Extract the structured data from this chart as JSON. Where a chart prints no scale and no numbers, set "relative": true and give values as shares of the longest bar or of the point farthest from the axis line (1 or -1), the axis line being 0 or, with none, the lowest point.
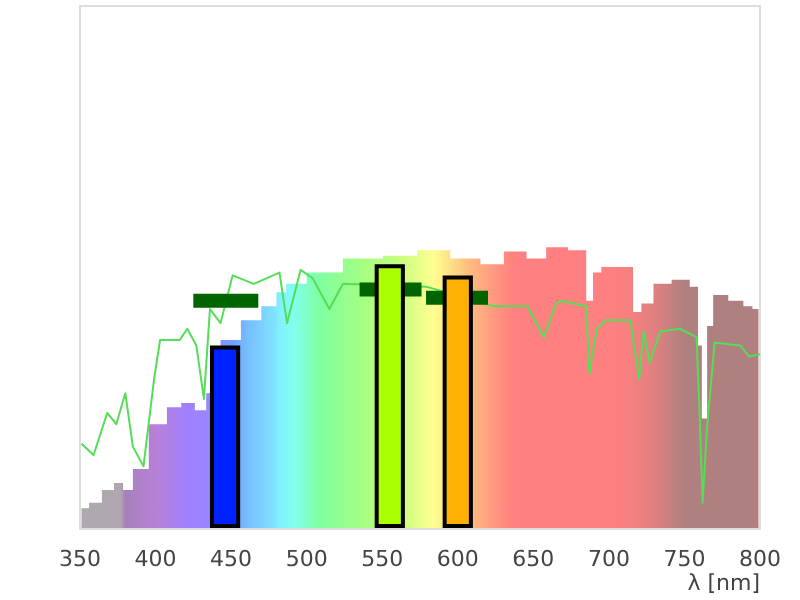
{
  "chart_data": {
    "type": "area",
    "relative": true,
    "xlabel": "λ [nm]",
    "xlim": [
      350,
      800
    ],
    "xticks": [
      350,
      400,
      450,
      500,
      550,
      600,
      650,
      700,
      750,
      800
    ],
    "grid": false,
    "series": [
      {
        "x": [
          351,
          361,
          368,
          377,
          380,
          390,
          401,
          414,
          420,
          432,
          435,
          451,
          462,
          478,
          482,
          491,
          509,
          539,
          562,
          584,
          606,
          624,
          637,
          654,
          663,
          683,
          687,
          692,
          698,
          714,
          718,
          725,
          734,
          749,
          758,
          760,
          763,
          767,
          771,
          787,
          791,
          799
        ],
        "values": [
          0.07,
          0.09,
          0.135,
          0.16,
          0.135,
          0.21,
          0.37,
          0.43,
          0.445,
          0.42,
          0.48,
          0.67,
          0.74,
          0.79,
          0.84,
          0.87,
          0.91,
          0.96,
          0.97,
          0.99,
          0.96,
          0.94,
          0.985,
          0.96,
          1.0,
          0.99,
          0.81,
          0.91,
          0.93,
          0.93,
          0.77,
          0.8,
          0.87,
          0.885,
          0.86,
          0.65,
          0.39,
          0.72,
          0.83,
          0.81,
          0.79,
          0.78
        ],
        "colors": [
          "#b0a8b0",
          "#b0a8b0",
          "#b0a8b0",
          "#b0a8b0",
          "#a880b8",
          "#b080c8",
          "#b880d8",
          "#a880f0",
          "#a080ff",
          "#9c84ff",
          "#9888ff",
          "#70a0ff",
          "#78c0ff",
          "#80e0ff",
          "#80f0ff",
          "#80fff0",
          "#80ffa0",
          "#a8ff80",
          "#c8ff80",
          "#ffff90",
          "#ffc080",
          "#ff9880",
          "#ff8080",
          "#ff8080",
          "#ff8080",
          "#ff8080",
          "#ff8080",
          "#ff8080",
          "#ff8080",
          "#f88080",
          "#f08080",
          "#e88080",
          "#d88080",
          "#b08080",
          "#b08080",
          "#b08080",
          "#b08080",
          "#b08080",
          "#b08080",
          "#b08080",
          "#b08080",
          "#b08080"
        ]
      },
      {
        "type": "line",
        "color": "#55dd55",
        "x": [
          351,
          359,
          368,
          374,
          380,
          385,
          392,
          399,
          403,
          416,
          421,
          427,
          432,
          436,
          443,
          451,
          465,
          482,
          487,
          496,
          504,
          515,
          524,
          579,
          624,
          646,
          657,
          665,
          668,
          685,
          687,
          692,
          698,
          714,
          720,
          723,
          727,
          734,
          747,
          758,
          760,
          762,
          765,
          770,
          787,
          793,
          800
        ],
        "values": [
          0.3,
          0.26,
          0.41,
          0.37,
          0.48,
          0.29,
          0.22,
          0.53,
          0.67,
          0.67,
          0.71,
          0.65,
          0.46,
          0.78,
          0.73,
          0.9,
          0.87,
          0.91,
          0.73,
          0.92,
          0.89,
          0.78,
          0.87,
          0.86,
          0.79,
          0.79,
          0.68,
          0.8,
          0.81,
          0.79,
          0.55,
          0.71,
          0.74,
          0.74,
          0.53,
          0.7,
          0.59,
          0.7,
          0.71,
          0.68,
          0.41,
          0.09,
          0.36,
          0.66,
          0.65,
          0.61,
          0.62
        ]
      },
      {
        "type": "line",
        "color": "#006400",
        "x": [
          425,
          468
        ],
        "values": [
          0.81,
          0.81
        ]
      },
      {
        "type": "line",
        "color": "#006400",
        "x": [
          535,
          576
        ],
        "values": [
          0.85,
          0.85
        ]
      },
      {
        "type": "line",
        "color": "#006400",
        "x": [
          579,
          620
        ],
        "values": [
          0.82,
          0.82
        ]
      },
      {
        "type": "bar",
        "x": [
          446,
          555,
          600
        ],
        "values": [
          0.65,
          0.94,
          0.9
        ],
        "colors": [
          "#0022ff",
          "#aaff00",
          "#ffb000"
        ]
      }
    ]
  }
}
